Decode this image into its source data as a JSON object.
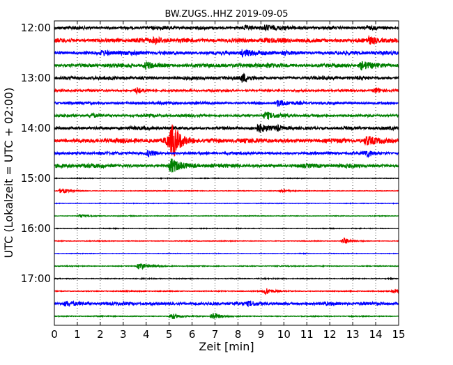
{
  "chart_data": {
    "type": "line",
    "title": "BW.ZUGS..HHZ 2019-09-05",
    "xlabel": "Zeit  [min]",
    "ylabel": "UTC (Lokalzeit = UTC + 02:00)",
    "xlim": [
      0,
      15
    ],
    "x_ticks": [
      "0",
      "1",
      "2",
      "3",
      "4",
      "5",
      "6",
      "7",
      "8",
      "9",
      "10",
      "11",
      "12",
      "13",
      "14",
      "15"
    ],
    "y_ticks": [
      "12:00",
      "13:00",
      "14:00",
      "15:00",
      "16:00",
      "17:00"
    ],
    "grid": "vertical dotted lines at each minute",
    "trace_colors": [
      "#000000",
      "#ff0000",
      "#0000ff",
      "#008000"
    ],
    "series": [
      {
        "start": "12:00",
        "color": "#000000",
        "noise": 0.3,
        "events": [
          {
            "x": 9.2,
            "amp": 0.45
          },
          {
            "x": 8.3,
            "amp": 0.25
          },
          {
            "x": 13.6,
            "amp": 0.2
          }
        ]
      },
      {
        "start": "12:15",
        "color": "#ff0000",
        "noise": 0.4,
        "events": [
          {
            "x": 4.4,
            "amp": 0.35
          },
          {
            "x": 13.7,
            "amp": 0.5
          }
        ]
      },
      {
        "start": "12:30",
        "color": "#0000ff",
        "noise": 0.35,
        "events": [
          {
            "x": 2.1,
            "amp": 0.3
          },
          {
            "x": 8.2,
            "amp": 0.5
          },
          {
            "x": 10.0,
            "amp": 0.25
          }
        ]
      },
      {
        "start": "12:45",
        "color": "#008000",
        "noise": 0.35,
        "events": [
          {
            "x": 4.0,
            "amp": 0.55
          },
          {
            "x": 9.3,
            "amp": 0.3
          },
          {
            "x": 13.4,
            "amp": 0.55
          }
        ]
      },
      {
        "start": "13:00",
        "color": "#000000",
        "noise": 0.3,
        "events": [
          {
            "x": 8.2,
            "amp": 0.65
          }
        ]
      },
      {
        "start": "13:15",
        "color": "#ff0000",
        "noise": 0.2,
        "events": [
          {
            "x": 3.6,
            "amp": 0.5
          },
          {
            "x": 14.0,
            "amp": 0.45
          }
        ]
      },
      {
        "start": "13:30",
        "color": "#0000ff",
        "noise": 0.25,
        "events": [
          {
            "x": 9.7,
            "amp": 0.5
          }
        ]
      },
      {
        "start": "13:45",
        "color": "#008000",
        "noise": 0.25,
        "events": [
          {
            "x": 1.6,
            "amp": 0.3
          },
          {
            "x": 9.2,
            "amp": 0.55
          }
        ]
      },
      {
        "start": "14:00",
        "color": "#000000",
        "noise": 0.3,
        "events": [
          {
            "x": 8.9,
            "amp": 0.55
          },
          {
            "x": 9.7,
            "amp": 0.3
          }
        ]
      },
      {
        "start": "14:15",
        "color": "#ff0000",
        "noise": 0.4,
        "events": [
          {
            "x": 5.15,
            "amp": 2.6
          },
          {
            "x": 4.9,
            "amp": 0.9
          },
          {
            "x": 13.6,
            "amp": 0.6
          }
        ]
      },
      {
        "start": "14:30",
        "color": "#0000ff",
        "noise": 0.25,
        "events": [
          {
            "x": 4.1,
            "amp": 0.5
          },
          {
            "x": 13.6,
            "amp": 0.5
          }
        ]
      },
      {
        "start": "14:45",
        "color": "#008000",
        "noise": 0.35,
        "events": [
          {
            "x": 5.1,
            "amp": 1.1
          }
        ]
      },
      {
        "start": "15:00",
        "color": "#000000",
        "noise": 0.06,
        "events": []
      },
      {
        "start": "15:15",
        "color": "#ff0000",
        "noise": 0.06,
        "events": [
          {
            "x": 0.3,
            "amp": 0.45
          },
          {
            "x": 9.9,
            "amp": 0.2
          }
        ]
      },
      {
        "start": "15:30",
        "color": "#0000ff",
        "noise": 0.05,
        "events": []
      },
      {
        "start": "15:45",
        "color": "#008000",
        "noise": 0.06,
        "events": [
          {
            "x": 1.1,
            "amp": 0.3
          }
        ]
      },
      {
        "start": "16:00",
        "color": "#000000",
        "noise": 0.06,
        "events": []
      },
      {
        "start": "16:15",
        "color": "#ff0000",
        "noise": 0.06,
        "events": [
          {
            "x": 12.6,
            "amp": 0.55
          }
        ]
      },
      {
        "start": "16:30",
        "color": "#0000ff",
        "noise": 0.05,
        "events": []
      },
      {
        "start": "16:45",
        "color": "#008000",
        "noise": 0.08,
        "events": [
          {
            "x": 3.7,
            "amp": 0.6
          }
        ]
      },
      {
        "start": "17:00",
        "color": "#000000",
        "noise": 0.08,
        "events": []
      },
      {
        "start": "17:15",
        "color": "#ff0000",
        "noise": 0.08,
        "events": [
          {
            "x": 9.2,
            "amp": 0.55
          },
          {
            "x": 14.8,
            "amp": 0.35
          }
        ]
      },
      {
        "start": "17:30",
        "color": "#0000ff",
        "noise": 0.3,
        "events": [
          {
            "x": 0.5,
            "amp": 0.35
          },
          {
            "x": 8.5,
            "amp": 0.25
          }
        ]
      },
      {
        "start": "17:45",
        "color": "#008000",
        "noise": 0.08,
        "events": [
          {
            "x": 5.1,
            "amp": 0.5
          },
          {
            "x": 6.9,
            "amp": 0.6
          }
        ]
      }
    ]
  }
}
